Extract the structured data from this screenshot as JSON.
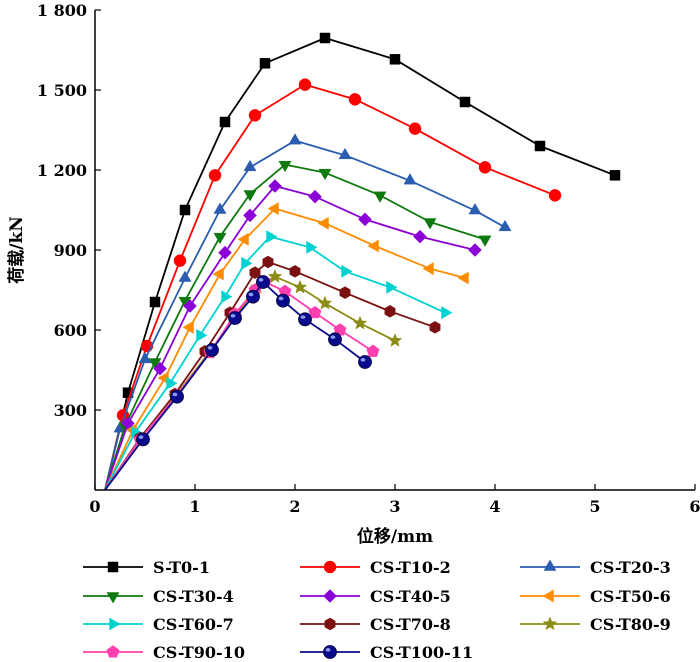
{
  "chart_data": {
    "type": "line",
    "title": "",
    "xlabel": "位移/mm",
    "ylabel": "荷载/kN",
    "xlim": [
      0,
      6
    ],
    "ylim": [
      0,
      1800
    ],
    "x_ticks": [
      0,
      1,
      2,
      3,
      4,
      5,
      6
    ],
    "x_tick_labels": [
      "0",
      "1",
      "2",
      "3",
      "4",
      "5",
      "6"
    ],
    "y_ticks": [
      300,
      600,
      900,
      1200,
      1500,
      1800
    ],
    "y_tick_labels": [
      "300",
      "600",
      "900",
      "1 200",
      "1 500",
      "1 800"
    ],
    "legend_position": "bottom",
    "series": [
      {
        "name": "S-T0-1",
        "color": "#000000",
        "marker": "square",
        "x": [
          0.1,
          0.33,
          0.6,
          0.9,
          1.3,
          1.7,
          2.3,
          3.0,
          3.7,
          4.45,
          5.2
        ],
        "y": [
          0,
          365,
          705,
          1050,
          1380,
          1600,
          1695,
          1615,
          1455,
          1290,
          1180
        ]
      },
      {
        "name": "CS-T10-2",
        "color": "#ff0000",
        "marker": "circle",
        "x": [
          0.1,
          0.28,
          0.52,
          0.85,
          1.2,
          1.6,
          2.1,
          2.6,
          3.2,
          3.9,
          4.6
        ],
        "y": [
          0,
          280,
          540,
          860,
          1180,
          1405,
          1520,
          1465,
          1355,
          1210,
          1105
        ]
      },
      {
        "name": "CS-T20-3",
        "color": "#2a5db0",
        "marker": "triangle-up",
        "x": [
          0.1,
          0.25,
          0.5,
          0.9,
          1.25,
          1.55,
          2.0,
          2.5,
          3.15,
          3.8,
          4.1
        ],
        "y": [
          0,
          230,
          490,
          795,
          1050,
          1210,
          1310,
          1255,
          1160,
          1048,
          985
        ]
      },
      {
        "name": "CS-T30-4",
        "color": "#0e7a0e",
        "marker": "triangle-down",
        "x": [
          0.1,
          0.3,
          0.6,
          0.9,
          1.25,
          1.55,
          1.9,
          2.3,
          2.85,
          3.35,
          3.9
        ],
        "y": [
          0,
          240,
          480,
          710,
          950,
          1110,
          1220,
          1190,
          1105,
          1005,
          940
        ]
      },
      {
        "name": "CS-T40-5",
        "color": "#8b00d6",
        "marker": "diamond",
        "x": [
          0.1,
          0.33,
          0.65,
          0.95,
          1.3,
          1.55,
          1.8,
          2.2,
          2.7,
          3.25,
          3.8
        ],
        "y": [
          0,
          250,
          455,
          690,
          890,
          1030,
          1140,
          1100,
          1015,
          950,
          900
        ]
      },
      {
        "name": "CS-T50-6",
        "color": "#ff8c00",
        "marker": "triangle-left",
        "x": [
          0.1,
          0.38,
          0.7,
          0.95,
          1.25,
          1.5,
          1.8,
          2.3,
          2.8,
          3.35,
          3.7
        ],
        "y": [
          0,
          225,
          420,
          610,
          810,
          940,
          1055,
          1000,
          915,
          830,
          795
        ]
      },
      {
        "name": "CS-T60-7",
        "color": "#00d2d2",
        "marker": "triangle-right",
        "x": [
          0.1,
          0.4,
          0.75,
          1.05,
          1.3,
          1.5,
          1.75,
          2.15,
          2.5,
          2.95,
          3.5
        ],
        "y": [
          0,
          215,
          400,
          580,
          725,
          850,
          950,
          910,
          820,
          760,
          665
        ]
      },
      {
        "name": "CS-T70-8",
        "color": "#7a1010",
        "marker": "hexagon",
        "x": [
          0.1,
          0.45,
          0.8,
          1.1,
          1.35,
          1.6,
          1.73,
          2.0,
          2.5,
          2.95,
          3.4
        ],
        "y": [
          0,
          195,
          360,
          520,
          665,
          815,
          855,
          820,
          740,
          670,
          610
        ]
      },
      {
        "name": "CS-T80-9",
        "color": "#8c8c14",
        "marker": "star",
        "x": [
          0.1,
          0.45,
          0.8,
          1.15,
          1.4,
          1.62,
          1.8,
          2.05,
          2.3,
          2.65,
          3.0
        ],
        "y": [
          0,
          190,
          350,
          520,
          650,
          760,
          800,
          760,
          700,
          625,
          560
        ]
      },
      {
        "name": "CS-T90-10",
        "color": "#ff3fb0",
        "marker": "pentagon",
        "x": [
          0.1,
          0.45,
          0.82,
          1.15,
          1.4,
          1.6,
          1.7,
          1.9,
          2.2,
          2.45,
          2.78
        ],
        "y": [
          0,
          190,
          355,
          515,
          660,
          750,
          780,
          745,
          665,
          600,
          520
        ]
      },
      {
        "name": "CS-T100-11",
        "color": "#0a0a8c",
        "marker": "sphere",
        "x": [
          0.1,
          0.48,
          0.82,
          1.17,
          1.4,
          1.58,
          1.68,
          1.88,
          2.1,
          2.4,
          2.7
        ],
        "y": [
          0,
          190,
          350,
          525,
          645,
          725,
          780,
          710,
          640,
          565,
          480
        ]
      }
    ]
  }
}
